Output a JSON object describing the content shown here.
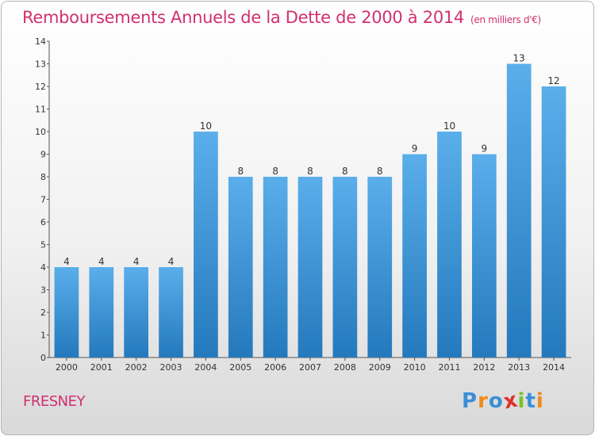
{
  "title": "Remboursements Annuels de la Dette de 2000 à 2014",
  "unit": "(en milliers d'€)",
  "commune": "FRESNEY",
  "logo": {
    "letters": [
      "P",
      "r",
      "o",
      "x",
      "i",
      "t",
      "i"
    ],
    "colors": [
      "#3a8fd6",
      "#f08a1c",
      "#3a8fd6",
      "#e0302a",
      "#7fbf2a",
      "#3a8fd6",
      "#f08a1c"
    ]
  },
  "colors": {
    "bar_top": "#5aaeea",
    "bar_bottom": "#2479bd",
    "title": "#d1306e"
  },
  "chart_data": {
    "type": "bar",
    "categories": [
      "2000",
      "2001",
      "2002",
      "2003",
      "2004",
      "2005",
      "2006",
      "2007",
      "2008",
      "2009",
      "2010",
      "2011",
      "2012",
      "2013",
      "2014"
    ],
    "values": [
      4,
      4,
      4,
      4,
      10,
      8,
      8,
      8,
      8,
      8,
      9,
      10,
      9,
      13,
      12
    ],
    "data_labels": [
      "4",
      "4",
      "4",
      "4",
      "10",
      "8",
      "8",
      "8",
      "8",
      "8",
      "9",
      "10",
      "9",
      "13",
      "12"
    ],
    "title": "Remboursements Annuels de la Dette de 2000 à 2014",
    "ylim": [
      0,
      14
    ],
    "yticks": [
      0,
      1,
      2,
      3,
      4,
      5,
      6,
      7,
      8,
      9,
      10,
      11,
      12,
      13,
      14
    ],
    "grid": false
  }
}
